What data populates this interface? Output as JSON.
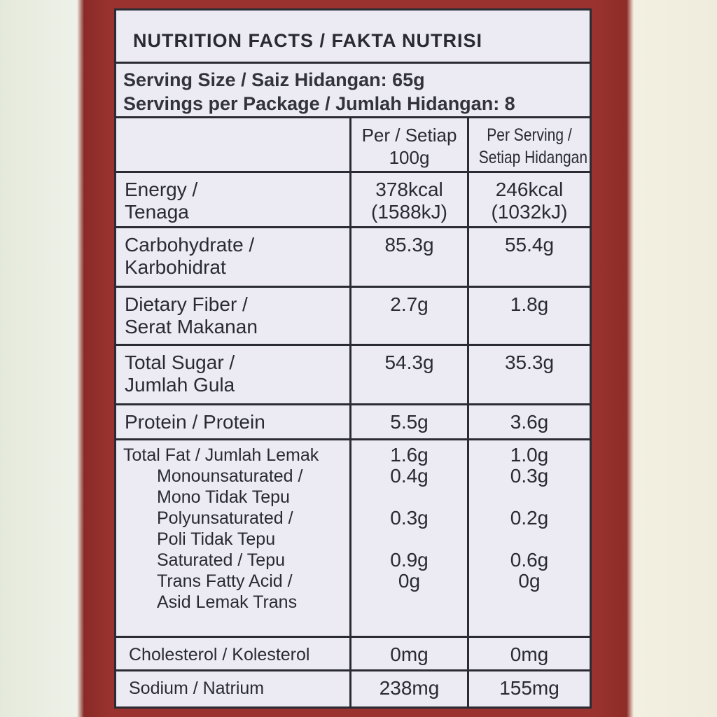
{
  "title": "NUTRITION FACTS / FAKTA NUTRISI",
  "serving_size": "Serving Size / Saiz Hidangan: 65g",
  "servings_per_package": "Servings per Package / Jumlah Hidangan: 8",
  "columns": {
    "per100": [
      "Per / Setiap",
      "100g"
    ],
    "perServing": [
      "Per Serving /",
      "Setiap Hidangan"
    ]
  },
  "rows": [
    {
      "label": [
        "Energy /",
        "Tenaga"
      ],
      "per100": [
        "378kcal",
        "(1588kJ)"
      ],
      "perServing": [
        "246kcal",
        "(1032kJ)"
      ]
    },
    {
      "label": [
        "Carbohydrate /",
        "Karbohidrat"
      ],
      "per100": "85.3g",
      "perServing": "55.4g"
    },
    {
      "label": [
        "Dietary Fiber /",
        "Serat Makanan"
      ],
      "per100": "2.7g",
      "perServing": "1.8g"
    },
    {
      "label": [
        "Total Sugar /",
        "Jumlah Gula"
      ],
      "per100": "54.3g",
      "perServing": "35.3g"
    },
    {
      "label": [
        "Protein / Protein"
      ],
      "per100": "5.5g",
      "perServing": "3.6g"
    }
  ],
  "fat": {
    "label": "Total Fat / Jumlah Lemak",
    "per100": "1.6g",
    "perServing": "1.0g",
    "sub": [
      {
        "label": [
          "Monounsaturated /",
          "Mono Tidak Tepu"
        ],
        "per100": "0.4g",
        "perServing": "0.3g"
      },
      {
        "label": [
          "Polyunsaturated /",
          "Poli Tidak Tepu"
        ],
        "per100": "0.3g",
        "perServing": "0.2g"
      },
      {
        "label": [
          "Saturated / Tepu"
        ],
        "per100": "0.9g",
        "perServing": "0.6g"
      },
      {
        "label": [
          "Trans Fatty Acid /",
          "Asid Lemak Trans"
        ],
        "per100": "0g",
        "perServing": "0g"
      }
    ]
  },
  "cholesterol": {
    "label": "Cholesterol / Kolesterol",
    "per100": "0mg",
    "perServing": "0mg"
  },
  "sodium": {
    "label": "Sodium / Natrium",
    "per100": "238mg",
    "perServing": "155mg"
  }
}
